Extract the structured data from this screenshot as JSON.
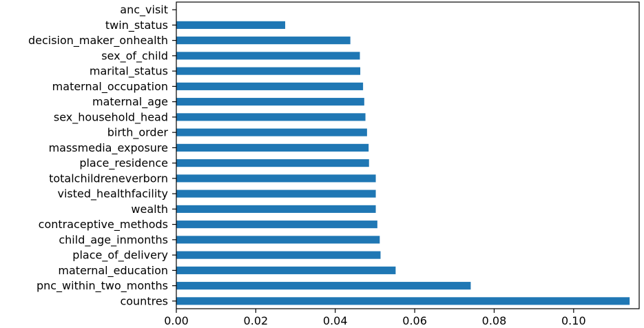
{
  "chart_data": {
    "type": "bar",
    "orientation": "horizontal",
    "title": "",
    "xlabel": "",
    "ylabel": "",
    "xlim": [
      0,
      0.1165
    ],
    "xticks": [
      "0.00",
      "0.02",
      "0.04",
      "0.06",
      "0.08",
      "0.10"
    ],
    "xtick_values": [
      0.0,
      0.02,
      0.04,
      0.06,
      0.08,
      0.1
    ],
    "bar_color": "#1f77b4",
    "grid": false,
    "categories": [
      "anc_visit",
      "twin_status",
      "decision_maker_onhealth",
      "sex_of_child",
      "marital_status",
      "maternal_occupation",
      "maternal_age",
      "sex_household_head",
      "birth_order",
      "massmedia_exposure",
      "place_residence",
      "totalchildreneverborn",
      "visted_healthfacility",
      "wealth",
      "contraceptive_methods",
      "child_age_inmonths",
      "place_of_delivery",
      "maternal_education",
      "pnc_within_two_months",
      "countres"
    ],
    "values": [
      0.0,
      0.0274,
      0.0438,
      0.0462,
      0.0463,
      0.047,
      0.0473,
      0.0476,
      0.048,
      0.0484,
      0.0485,
      0.0502,
      0.0502,
      0.0502,
      0.0506,
      0.0512,
      0.0514,
      0.0552,
      0.0741,
      0.1141
    ]
  }
}
